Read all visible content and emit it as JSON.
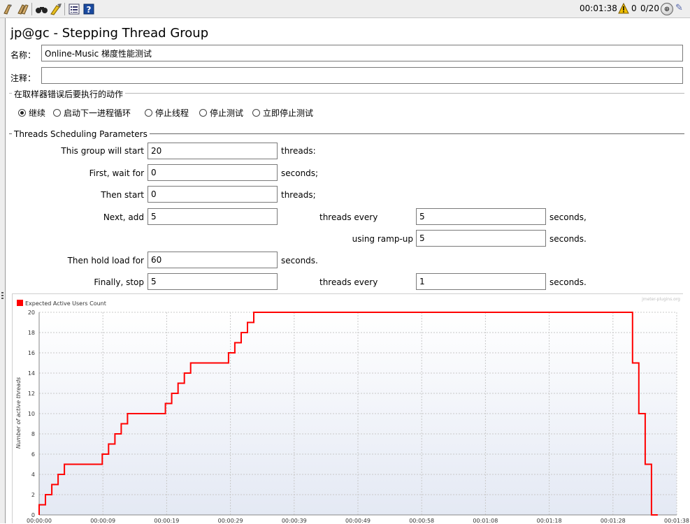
{
  "toolbar": {
    "buttons": [
      {
        "name": "clear-icon"
      },
      {
        "name": "clear-all-icon"
      },
      {
        "name": "search-icon"
      },
      {
        "name": "reset-search-icon"
      },
      {
        "name": "function-helper-icon"
      },
      {
        "name": "help-icon"
      }
    ],
    "elapsed": "00:01:38",
    "error_count": "0",
    "thread_count": "0/20"
  },
  "panel": {
    "title": "jp@gc - Stepping Thread Group",
    "name_label": "名称：",
    "name_value": "Online-Music 梯度性能测试",
    "comment_label": "注释：",
    "comment_value": ""
  },
  "error_action": {
    "title": "在取样器错误后要执行的动作",
    "options": [
      {
        "label": "继续",
        "selected": true
      },
      {
        "label": "启动下一进程循环",
        "selected": false
      },
      {
        "label": "停止线程",
        "selected": false
      },
      {
        "label": "停止测试",
        "selected": false
      },
      {
        "label": "立即停止测试",
        "selected": false
      }
    ]
  },
  "scheduling": {
    "title": "Threads Scheduling Parameters",
    "start_label": "This group will start",
    "start_value": "20",
    "start_unit": "threads:",
    "wait_label": "First, wait for",
    "wait_value": "0",
    "wait_unit": "seconds;",
    "then_start_label": "Then start",
    "then_start_value": "0",
    "then_start_unit": "threads;",
    "next_add_label": "Next, add",
    "next_add_value": "5",
    "next_add_every": "threads every",
    "next_add_every_value": "5",
    "next_add_unit": "seconds,",
    "rampup_label": "using ramp-up",
    "rampup_value": "5",
    "rampup_unit": "seconds.",
    "hold_label": "Then hold load for",
    "hold_value": "60",
    "hold_unit": "seconds.",
    "stop_label": "Finally, stop",
    "stop_value": "5",
    "stop_every": "threads every",
    "stop_every_value": "1",
    "stop_unit": "seconds."
  },
  "chart_data": {
    "type": "line",
    "legend": "Expected Active Users Count",
    "legend_position": "top-left",
    "watermark": "jmeter-plugins.org",
    "ylabel": "Number of active threads",
    "xlabel": "",
    "color": "#ff0000",
    "ylim": [
      0,
      20
    ],
    "xlim_seconds": [
      0,
      101
    ],
    "y_ticks": [
      "0",
      "2",
      "4",
      "6",
      "8",
      "10",
      "12",
      "14",
      "16",
      "18",
      "20"
    ],
    "x_ticks": [
      "00:00:00",
      "00:00:09",
      "00:00:19",
      "00:00:29",
      "00:00:39",
      "00:00:49",
      "00:00:58",
      "00:01:08",
      "00:01:18",
      "00:01:28",
      "00:01:38"
    ],
    "grid": true,
    "series": [
      {
        "x": [
          0,
          0,
          1,
          1,
          2,
          2,
          3,
          3,
          4,
          4,
          10,
          10,
          11,
          11,
          12,
          12,
          13,
          13,
          14,
          14,
          20,
          20,
          21,
          21,
          22,
          22,
          23,
          23,
          24,
          24,
          30,
          30,
          31,
          31,
          32,
          32,
          33,
          33,
          34,
          34,
          94,
          94,
          95,
          95,
          96,
          96,
          97,
          97,
          98,
          98
        ],
        "y": [
          0,
          1,
          1,
          2,
          2,
          3,
          3,
          4,
          4,
          5,
          5,
          6,
          6,
          7,
          7,
          8,
          8,
          9,
          9,
          10,
          10,
          11,
          11,
          12,
          12,
          13,
          13,
          14,
          14,
          15,
          15,
          16,
          16,
          17,
          17,
          18,
          18,
          19,
          19,
          20,
          20,
          15,
          15,
          10,
          10,
          5,
          5,
          0,
          0,
          0
        ]
      }
    ]
  }
}
